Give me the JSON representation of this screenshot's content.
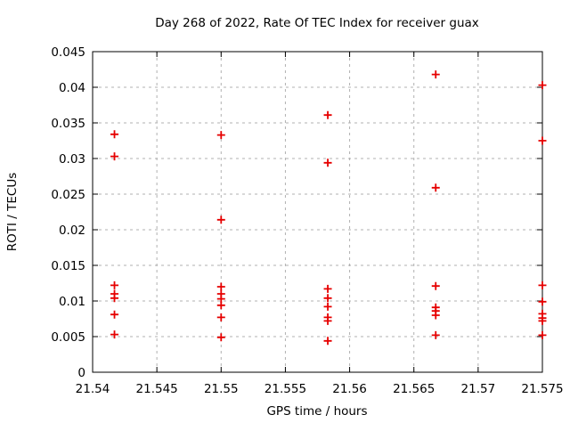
{
  "chart_data": {
    "type": "scatter",
    "title": "Day 268 of 2022, Rate Of TEC Index for receiver guax",
    "xlabel": "GPS time / hours",
    "ylabel": "ROTI / TECUs",
    "xlim": [
      21.54,
      21.575
    ],
    "ylim": [
      0,
      0.045
    ],
    "xticks": [
      21.54,
      21.545,
      21.55,
      21.555,
      21.56,
      21.565,
      21.57,
      21.575
    ],
    "xtick_labels": [
      "21.54",
      "21.545",
      "21.55",
      "21.555",
      "21.56",
      "21.565",
      "21.57",
      "21.575"
    ],
    "yticks": [
      0,
      0.005,
      0.01,
      0.015,
      0.02,
      0.025,
      0.03,
      0.035,
      0.04,
      0.045
    ],
    "ytick_labels": [
      "0",
      "0.005",
      "0.01",
      "0.015",
      "0.02",
      "0.025",
      "0.03",
      "0.035",
      "0.04",
      "0.045"
    ],
    "grid": true,
    "legend": "none",
    "marker": {
      "shape": "plus",
      "color": "#e60000",
      "size": 9,
      "stroke_width": 1.8
    },
    "colors": {
      "background": "#ffffff",
      "frame": "#000000",
      "grid": "#b0b0b0",
      "text": "#000000"
    },
    "series": [
      {
        "name": "ROTI",
        "points": [
          [
            21.5417,
            0.0334
          ],
          [
            21.5417,
            0.0303
          ],
          [
            21.5417,
            0.0122
          ],
          [
            21.5417,
            0.011
          ],
          [
            21.5417,
            0.0104
          ],
          [
            21.5417,
            0.0081
          ],
          [
            21.5417,
            0.0053
          ],
          [
            21.55,
            0.0333
          ],
          [
            21.55,
            0.0214
          ],
          [
            21.55,
            0.012
          ],
          [
            21.55,
            0.011
          ],
          [
            21.55,
            0.0103
          ],
          [
            21.55,
            0.0094
          ],
          [
            21.55,
            0.0077
          ],
          [
            21.55,
            0.0049
          ],
          [
            21.5583,
            0.0361
          ],
          [
            21.5583,
            0.0294
          ],
          [
            21.5583,
            0.0117
          ],
          [
            21.5583,
            0.0104
          ],
          [
            21.5583,
            0.0092
          ],
          [
            21.5583,
            0.0077
          ],
          [
            21.5583,
            0.0072
          ],
          [
            21.5583,
            0.0044
          ],
          [
            21.5667,
            0.0418
          ],
          [
            21.5667,
            0.0259
          ],
          [
            21.5667,
            0.0121
          ],
          [
            21.5667,
            0.0091
          ],
          [
            21.5667,
            0.0086
          ],
          [
            21.5667,
            0.008
          ],
          [
            21.5667,
            0.0052
          ],
          [
            21.575,
            0.0403
          ],
          [
            21.575,
            0.0325
          ],
          [
            21.575,
            0.0122
          ],
          [
            21.575,
            0.0099
          ],
          [
            21.575,
            0.0082
          ],
          [
            21.575,
            0.0076
          ],
          [
            21.575,
            0.0072
          ],
          [
            21.575,
            0.0052
          ]
        ]
      }
    ]
  }
}
